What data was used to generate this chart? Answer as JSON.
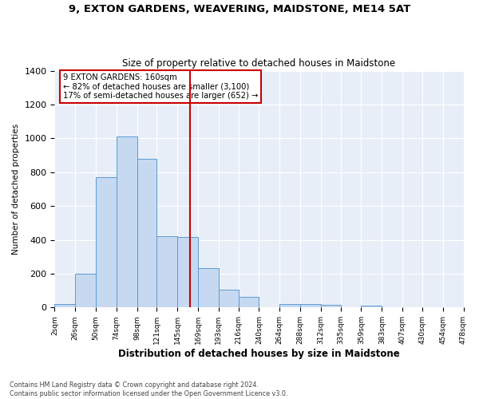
{
  "title1": "9, EXTON GARDENS, WEAVERING, MAIDSTONE, ME14 5AT",
  "title2": "Size of property relative to detached houses in Maidstone",
  "xlabel": "Distribution of detached houses by size in Maidstone",
  "ylabel": "Number of detached properties",
  "footnote1": "Contains HM Land Registry data © Crown copyright and database right 2024.",
  "footnote2": "Contains public sector information licensed under the Open Government Licence v3.0.",
  "annotation_line1": "9 EXTON GARDENS: 160sqm",
  "annotation_line2": "← 82% of detached houses are smaller (3,100)",
  "annotation_line3": "17% of semi-detached houses are larger (652) →",
  "property_size": 160,
  "bin_edges": [
    2,
    26,
    50,
    74,
    98,
    121,
    145,
    169,
    193,
    216,
    240,
    264,
    288,
    312,
    335,
    359,
    383,
    407,
    430,
    454,
    478
  ],
  "bar_heights": [
    20,
    200,
    770,
    1010,
    880,
    420,
    415,
    235,
    105,
    65,
    0,
    20,
    20,
    15,
    0,
    10,
    0,
    0,
    0,
    0
  ],
  "bar_color": "#c6d9f0",
  "bar_edgecolor": "#5b9bd5",
  "vline_color": "#cc0000",
  "vline_x": 160,
  "annotation_box_edgecolor": "#cc0000",
  "background_color": "#e8eef7",
  "ylim": [
    0,
    1400
  ],
  "yticks": [
    0,
    200,
    400,
    600,
    800,
    1000,
    1200,
    1400
  ]
}
